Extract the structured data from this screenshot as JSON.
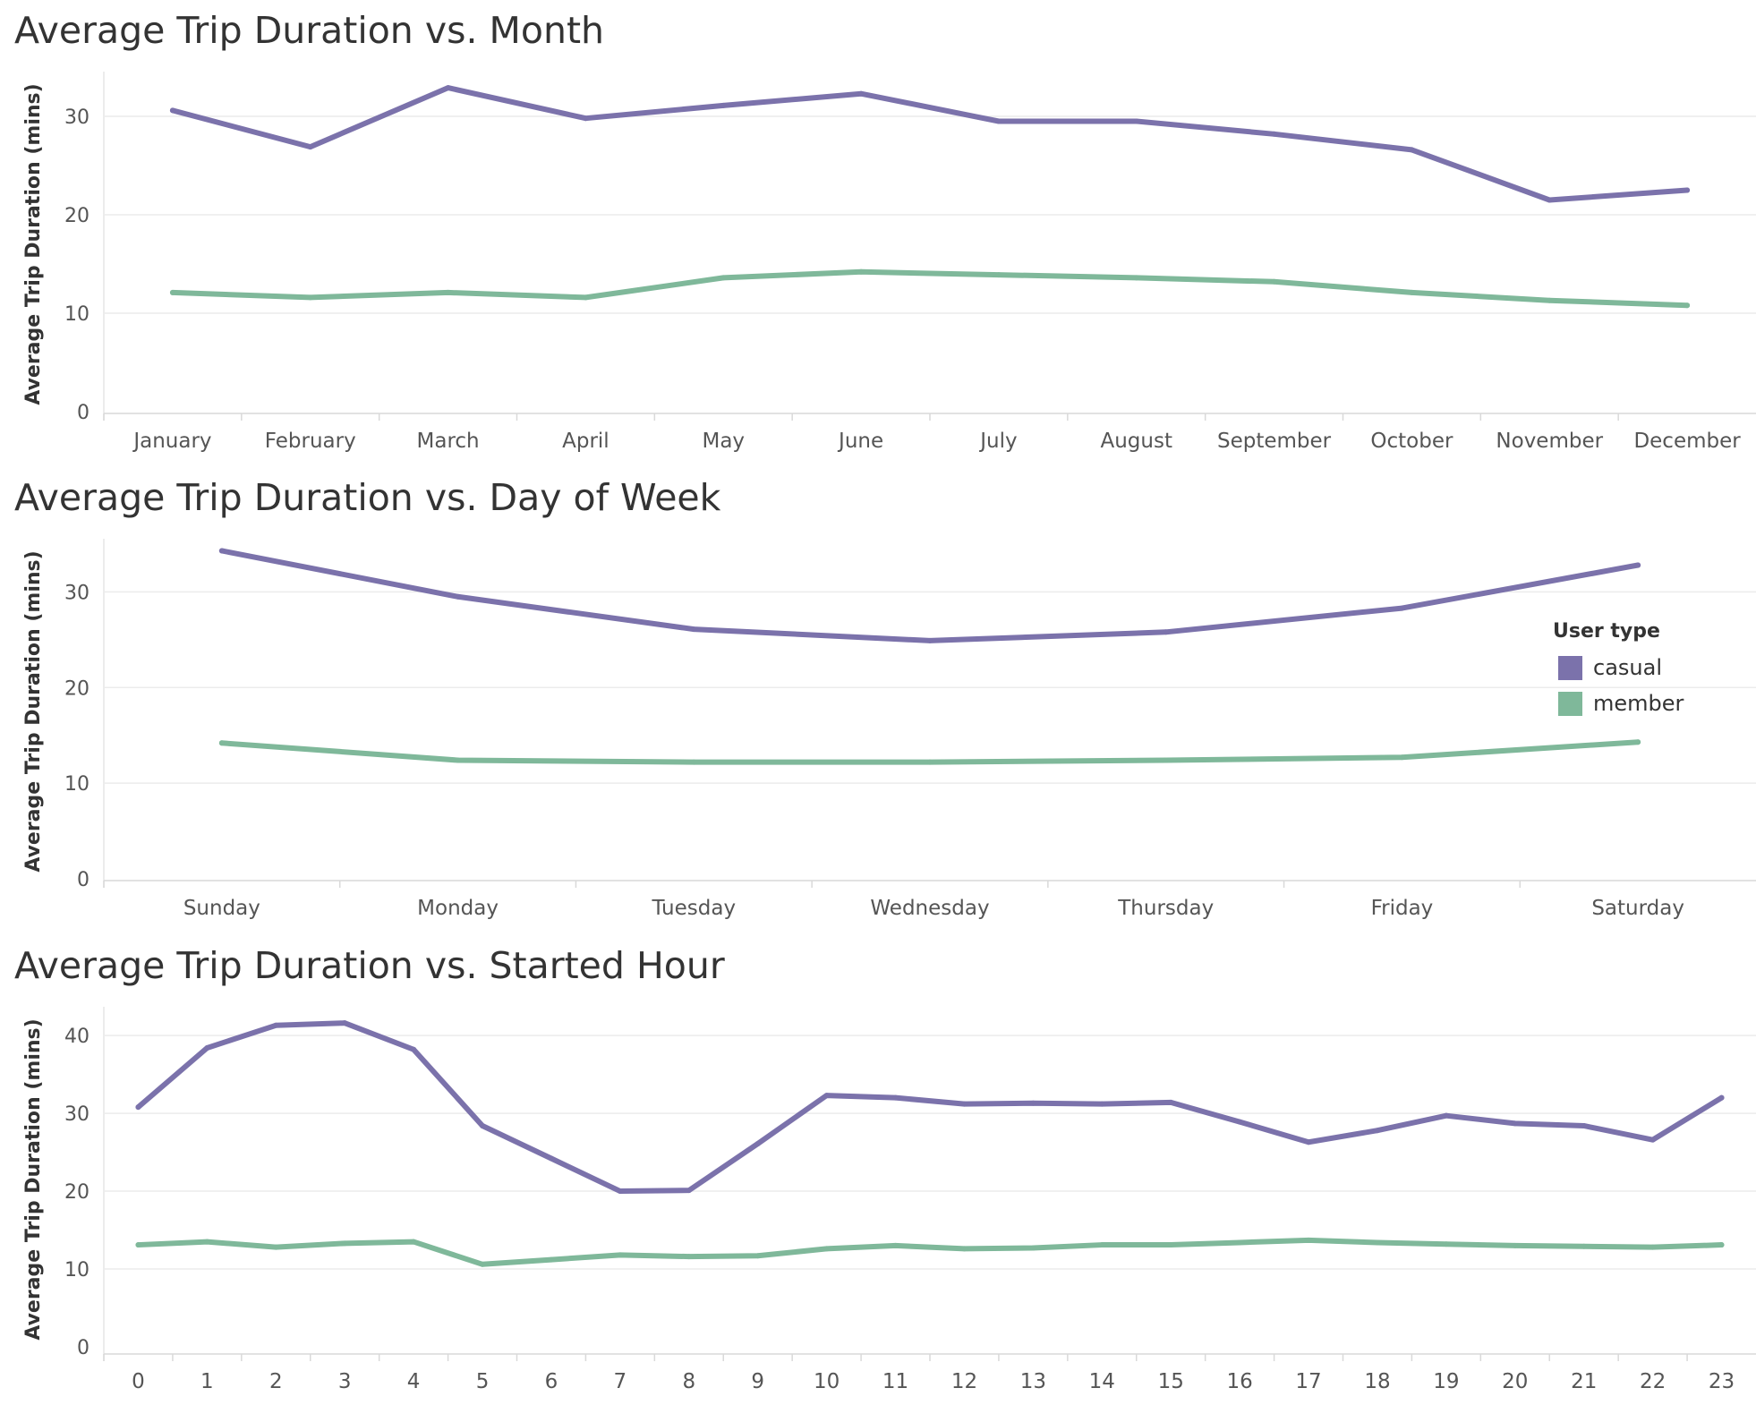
{
  "colors": {
    "casual": "#7b72ab",
    "member": "#7fb89a"
  },
  "legend": {
    "title": "User type",
    "items": [
      {
        "label": "casual",
        "color": "#7b72ab"
      },
      {
        "label": "member",
        "color": "#7fb89a"
      }
    ]
  },
  "chart_data": [
    {
      "type": "line",
      "title": "Average Trip Duration vs. Month",
      "xlabel": "",
      "ylabel": "Average Trip Duration (mins)",
      "ylim": [
        0,
        34
      ],
      "yticks": [
        0,
        10,
        20,
        30
      ],
      "grid": true,
      "categories": [
        "January",
        "February",
        "March",
        "April",
        "May",
        "June",
        "July",
        "August",
        "September",
        "October",
        "November",
        "December"
      ],
      "series": [
        {
          "name": "casual",
          "color": "#7b72ab",
          "values": [
            30.6,
            26.9,
            32.9,
            29.8,
            31.1,
            32.3,
            29.5,
            29.5,
            28.2,
            26.6,
            21.5,
            22.5
          ]
        },
        {
          "name": "member",
          "color": "#7fb89a",
          "values": [
            12.1,
            11.6,
            12.1,
            11.6,
            13.6,
            14.2,
            13.9,
            13.6,
            13.2,
            12.1,
            11.3,
            10.8
          ]
        }
      ]
    },
    {
      "type": "line",
      "title": "Average Trip Duration vs. Day of Week",
      "xlabel": "",
      "ylabel": "Average Trip Duration (mins)",
      "ylim": [
        0,
        35
      ],
      "yticks": [
        0,
        10,
        20,
        30
      ],
      "grid": true,
      "legend_position": "right",
      "categories": [
        "Sunday",
        "Monday",
        "Tuesday",
        "Wednesday",
        "Thursday",
        "Friday",
        "Saturday"
      ],
      "series": [
        {
          "name": "casual",
          "color": "#7b72ab",
          "values": [
            34.3,
            29.5,
            26.1,
            24.9,
            25.8,
            28.3,
            32.8
          ]
        },
        {
          "name": "member",
          "color": "#7fb89a",
          "values": [
            14.2,
            12.4,
            12.2,
            12.2,
            12.4,
            12.7,
            14.3
          ]
        }
      ]
    },
    {
      "type": "line",
      "title": "Average Trip Duration vs. Started Hour",
      "xlabel": "",
      "ylabel": "Average Trip Duration (mins)",
      "ylim": [
        0,
        43
      ],
      "yticks": [
        0,
        10,
        20,
        30,
        40
      ],
      "grid": true,
      "categories": [
        "0",
        "1",
        "2",
        "3",
        "4",
        "5",
        "6",
        "7",
        "8",
        "9",
        "10",
        "11",
        "12",
        "13",
        "14",
        "15",
        "16",
        "17",
        "18",
        "19",
        "20",
        "21",
        "22",
        "23"
      ],
      "series": [
        {
          "name": "casual",
          "color": "#7b72ab",
          "values": [
            30.8,
            38.4,
            41.3,
            41.6,
            38.2,
            28.4,
            24.2,
            20.0,
            20.1,
            26.1,
            32.3,
            32.0,
            31.2,
            31.3,
            31.2,
            31.4,
            28.9,
            26.3,
            27.8,
            29.7,
            28.7,
            28.4,
            26.6,
            32.0
          ]
        },
        {
          "name": "member",
          "color": "#7fb89a",
          "values": [
            13.1,
            13.5,
            12.8,
            13.3,
            13.5,
            10.6,
            11.2,
            11.8,
            11.6,
            11.7,
            12.6,
            13.0,
            12.6,
            12.7,
            13.1,
            13.1,
            13.4,
            13.7,
            13.4,
            13.2,
            13.0,
            12.9,
            12.8,
            13.1
          ]
        }
      ]
    }
  ]
}
